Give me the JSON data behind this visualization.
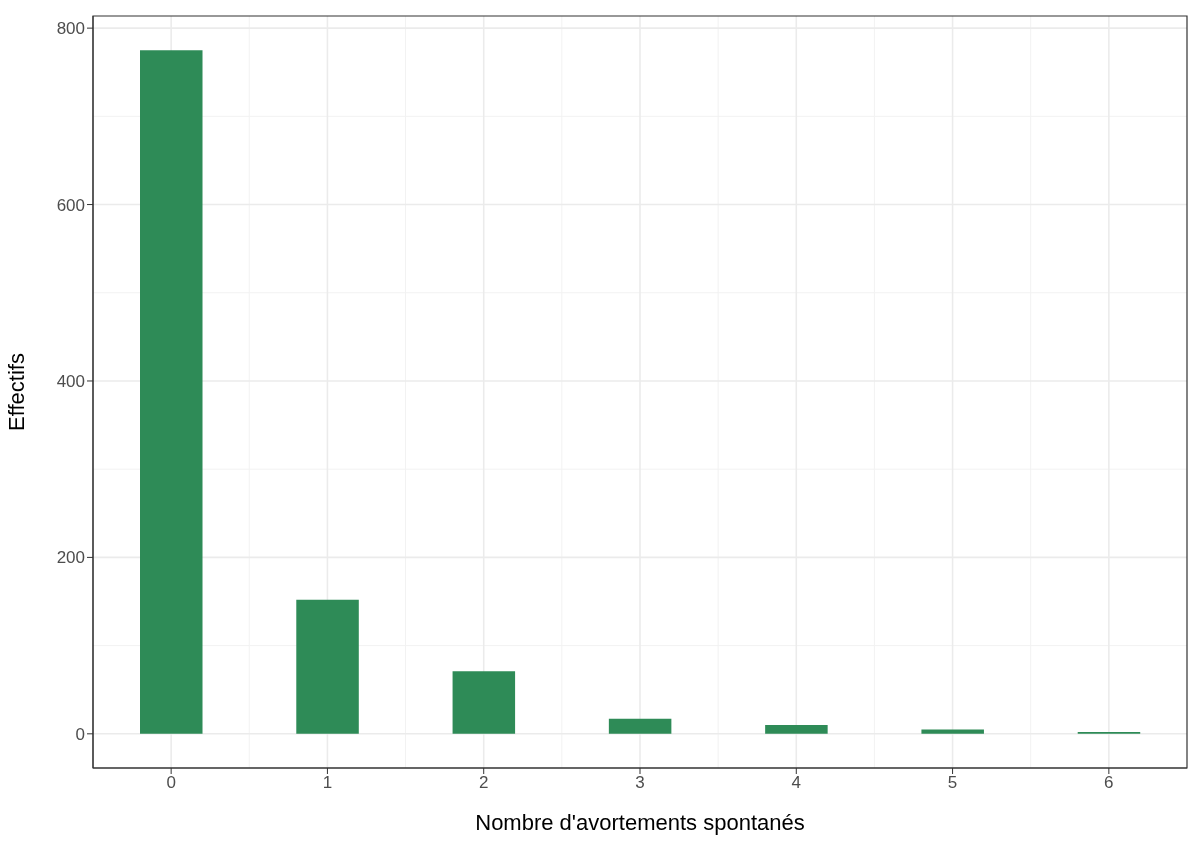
{
  "chart_data": {
    "type": "bar",
    "xlabel": "Nombre d'avortements spontanés",
    "ylabel": "Effectifs",
    "x": [
      0,
      1,
      2,
      3,
      4,
      5,
      6
    ],
    "values": [
      775,
      152,
      71,
      17,
      10,
      5,
      2
    ],
    "color": "#2e8b57",
    "xlim": [
      -0.5,
      6.5
    ],
    "xticks": [
      0,
      1,
      2,
      3,
      4,
      5,
      6
    ],
    "ylim": [
      -38.75,
      813.75
    ],
    "yticks": [
      0,
      200,
      400,
      600,
      800
    ],
    "grid": true
  }
}
